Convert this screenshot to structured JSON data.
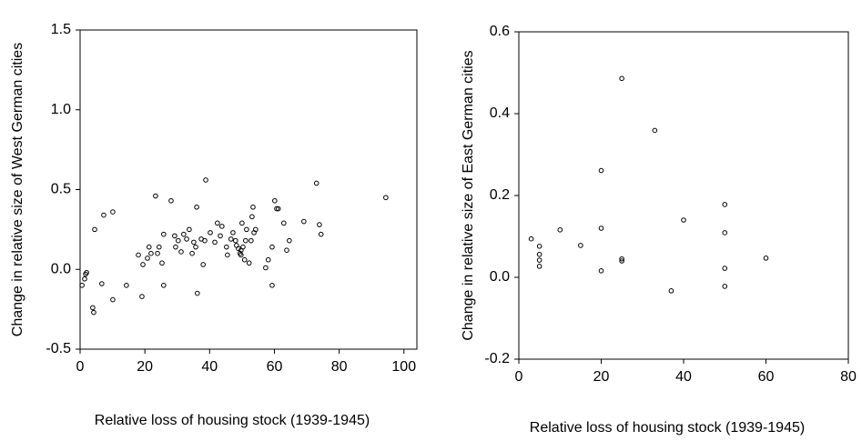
{
  "chart_data": [
    {
      "type": "scatter",
      "x_label": "Relative loss of housing stock (1939-1945)",
      "y_label": "Change in relative size of West German cities",
      "xlim": [
        0,
        104
      ],
      "ylim": [
        -0.5,
        1.5
      ],
      "xticks": [
        0,
        20,
        40,
        60,
        80,
        100
      ],
      "yticks": [
        -0.5,
        {
          "value": 0,
          "label": "0.0"
        },
        0.5,
        {
          "value": 1,
          "label": "1.0"
        },
        1.5
      ],
      "color": "#000000",
      "x": [
        0.6,
        1.4,
        1.7,
        2,
        3.9,
        4.2,
        4.5,
        6.7,
        7.3,
        10.1,
        10.1,
        14.3,
        18,
        19.1,
        19.4,
        20.8,
        21.3,
        21.9,
        23.3,
        23.9,
        24.4,
        25.3,
        25.8,
        25.8,
        28.1,
        29.2,
        29.5,
        30.3,
        31.2,
        32,
        32.9,
        33.7,
        34.6,
        35.1,
        35.7,
        36,
        36.2,
        37.4,
        38,
        38.5,
        38.8,
        40.2,
        41.6,
        42.4,
        43.3,
        43.8,
        45.2,
        45.5,
        46.6,
        47.2,
        48,
        48.3,
        48.9,
        49.4,
        49.7,
        49.7,
        50,
        50.3,
        50.8,
        51.1,
        51.4,
        52.2,
        52.8,
        53.1,
        53.4,
        53.7,
        54.2,
        57.3,
        58.1,
        59.3,
        59.3,
        60.1,
        60.7,
        61.2,
        62.9,
        63.8,
        64.6,
        69.1,
        73,
        73.9,
        74.4,
        94.4
      ],
      "values": [
        -0.1,
        -0.06,
        -0.03,
        -0.02,
        -0.24,
        -0.27,
        0.25,
        -0.09,
        0.34,
        0.36,
        -0.19,
        -0.1,
        0.09,
        -0.17,
        0.03,
        0.07,
        0.14,
        0.1,
        0.46,
        0.1,
        0.14,
        0.04,
        0.22,
        -0.1,
        0.43,
        0.21,
        0.14,
        0.18,
        0.11,
        0.22,
        0.19,
        0.25,
        0.1,
        0.17,
        0.14,
        0.39,
        -0.15,
        0.19,
        0.03,
        0.18,
        0.56,
        0.23,
        0.17,
        0.29,
        0.21,
        0.27,
        0.14,
        0.09,
        0.19,
        0.23,
        0.18,
        0.15,
        0.13,
        0.1,
        0.12,
        0.09,
        0.29,
        0.14,
        0.06,
        0.18,
        0.25,
        0.04,
        0.18,
        0.33,
        0.39,
        0.23,
        0.25,
        0.01,
        0.06,
        0.14,
        -0.1,
        0.43,
        0.38,
        0.38,
        0.29,
        0.12,
        0.18,
        0.3,
        0.54,
        0.28,
        0.22,
        0.45
      ]
    },
    {
      "type": "scatter",
      "x_label": "Relative loss of housing stock (1939-1945)",
      "y_label": "Change in relative size of East German cities",
      "xlim": [
        0,
        80
      ],
      "ylim": [
        -0.2,
        0.6
      ],
      "xticks": [
        0,
        20,
        40,
        60,
        80
      ],
      "yticks": [
        -0.2,
        {
          "value": 0,
          "label": "0.0"
        },
        0.2,
        0.4,
        0.6
      ],
      "color": "#000000",
      "x": [
        3,
        5,
        5,
        5,
        5,
        10,
        15,
        20,
        20,
        20,
        25,
        25,
        25,
        33,
        37,
        40,
        50,
        50,
        50,
        50,
        60
      ],
      "values": [
        0.094,
        0.076,
        0.056,
        0.042,
        0.027,
        0.116,
        0.078,
        0.261,
        0.12,
        0.016,
        0.486,
        0.045,
        0.04,
        0.359,
        -0.033,
        0.14,
        0.178,
        0.109,
        0.022,
        -0.022,
        0.047
      ]
    }
  ]
}
